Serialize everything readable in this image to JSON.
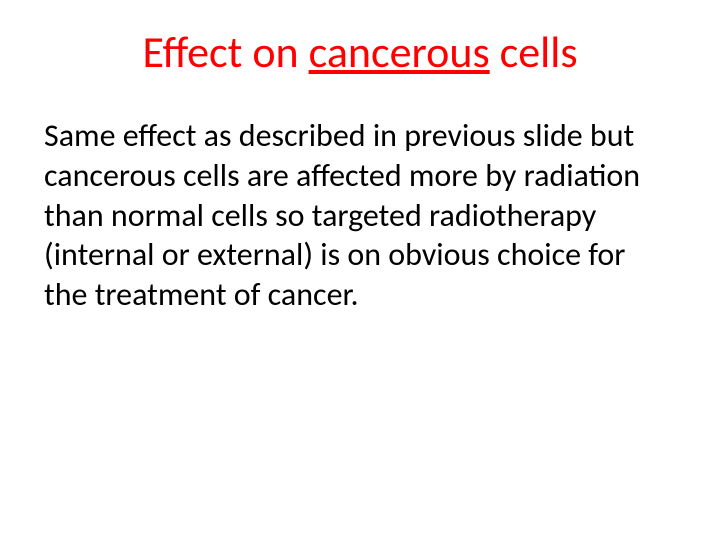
{
  "slide": {
    "title_prefix": "Effect on ",
    "title_underlined": "cancerous",
    "title_suffix": " cells",
    "body": "Same effect as described in previous slide but cancerous cells are affected more by radiation than normal cells so targeted radiotherapy (internal or external) is on obvious choice for the treatment of cancer.",
    "colors": {
      "title": "#ff0000",
      "body": "#000000",
      "background": "#ffffff"
    },
    "typography": {
      "title_fontsize": 44,
      "body_fontsize": 32,
      "font_family": "Calibri"
    }
  }
}
